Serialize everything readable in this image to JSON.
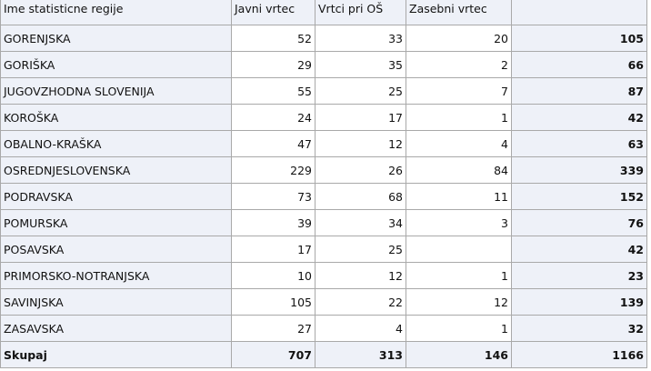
{
  "table": {
    "headers": [
      "Ime statisticne regije",
      "Javni vrtec",
      "Vrtci pri OŠ",
      "Zasebni vrtec",
      ""
    ],
    "rows": [
      [
        "GORENJSKA",
        "52",
        "33",
        "20",
        "105"
      ],
      [
        "GORIŠKA",
        "29",
        "35",
        "2",
        "66"
      ],
      [
        "JUGOVZHODNA SLOVENIJA",
        "55",
        "25",
        "7",
        "87"
      ],
      [
        "KOROŠKA",
        "24",
        "17",
        "1",
        "42"
      ],
      [
        "OBALNO-KRAŠKA",
        "47",
        "12",
        "4",
        "63"
      ],
      [
        "OSREDNJESLOVENSKA",
        "229",
        "26",
        "84",
        "339"
      ],
      [
        "PODRAVSKA",
        "73",
        "68",
        "11",
        "152"
      ],
      [
        "POMURSKA",
        "39",
        "34",
        "3",
        "76"
      ],
      [
        "POSAVSKA",
        "17",
        "25",
        "",
        "42"
      ],
      [
        "PRIMORSKO-NOTRANJSKA",
        "10",
        "12",
        "1",
        "23"
      ],
      [
        "SAVINJSKA",
        "105",
        "22",
        "12",
        "139"
      ],
      [
        "ZASAVSKA",
        "27",
        "4",
        "1",
        "32"
      ]
    ],
    "total": [
      "Skupaj",
      "707",
      "313",
      "146",
      "1166"
    ]
  },
  "colors": {
    "header_bg": "#eef1f8",
    "border": "#a9a9a9"
  }
}
